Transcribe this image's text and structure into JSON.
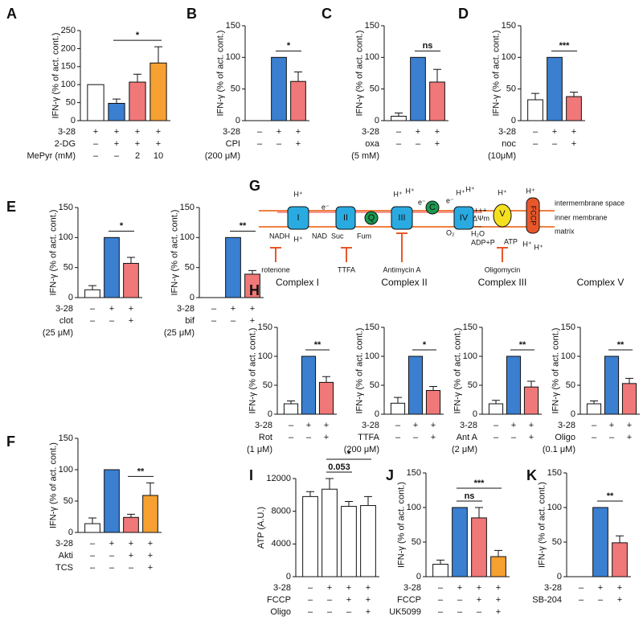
{
  "chart_data": [
    {
      "type": "bar",
      "panel": "A",
      "ylabel": "IFN-γ (% of act. cont.)",
      "values": [
        100,
        48,
        107,
        160
      ],
      "errors": [
        null,
        12,
        22,
        45
      ],
      "colors": [
        "#ffffff",
        "#3a7fd0",
        "#f07878",
        "#f5a030"
      ],
      "ylim": [
        0,
        250
      ],
      "yticks": [
        0,
        50,
        100,
        150,
        200,
        250
      ],
      "conditions": [
        {
          "label": "3-28",
          "marks": [
            "+",
            "+",
            "+",
            "+"
          ]
        },
        {
          "label": "2-DG",
          "marks": [
            "–",
            "+",
            "+",
            "+"
          ]
        },
        {
          "label": "MePyr (mM)",
          "marks": [
            "–",
            "–",
            "2",
            "10"
          ]
        }
      ],
      "significance": [
        {
          "label": "*",
          "bars": [
            1,
            3
          ]
        }
      ]
    },
    {
      "type": "bar",
      "panel": "B",
      "ylabel": "IFN-γ (% of act. cont.)",
      "values": [
        0,
        100,
        62
      ],
      "errors": [
        null,
        null,
        15
      ],
      "colors": [
        "#ffffff",
        "#3a7fd0",
        "#f07878"
      ],
      "ylim": [
        0,
        150
      ],
      "yticks": [
        0,
        50,
        100,
        150
      ],
      "conditions": [
        {
          "label": "3-28",
          "marks": [
            "–",
            "+",
            "+"
          ]
        },
        {
          "label": "CPI",
          "marks": [
            "–",
            "–",
            "+"
          ]
        }
      ],
      "note": "(200 μM)",
      "significance": [
        {
          "label": "*",
          "bars": [
            1,
            2
          ]
        }
      ]
    },
    {
      "type": "bar",
      "panel": "C",
      "ylabel": "IFN-γ (% of act. cont.)",
      "values": [
        7,
        100,
        61
      ],
      "errors": [
        5,
        null,
        20
      ],
      "colors": [
        "#ffffff",
        "#3a7fd0",
        "#f07878"
      ],
      "ylim": [
        0,
        150
      ],
      "yticks": [
        0,
        50,
        100,
        150
      ],
      "conditions": [
        {
          "label": "3-28",
          "marks": [
            "–",
            "+",
            "+"
          ]
        },
        {
          "label": "oxa",
          "marks": [
            "–",
            "–",
            "+"
          ]
        }
      ],
      "note": "(5 mM)",
      "significance": [
        {
          "label": "ns",
          "bars": [
            1,
            2
          ]
        }
      ]
    },
    {
      "type": "bar",
      "panel": "D",
      "ylabel": "IFN-γ (% of act. cont.)",
      "values": [
        33,
        100,
        38
      ],
      "errors": [
        10,
        null,
        7
      ],
      "colors": [
        "#ffffff",
        "#3a7fd0",
        "#f07878"
      ],
      "ylim": [
        0,
        150
      ],
      "yticks": [
        0,
        50,
        100,
        150
      ],
      "conditions": [
        {
          "label": "3-28",
          "marks": [
            "–",
            "+",
            "+"
          ]
        },
        {
          "label": "noc",
          "marks": [
            "–",
            "–",
            "+"
          ]
        }
      ],
      "note": "(10μM)",
      "significance": [
        {
          "label": "***",
          "bars": [
            1,
            2
          ]
        }
      ]
    },
    {
      "type": "bar",
      "panel": "E",
      "ylabel": "IFN-γ (% of act. cont.)",
      "values": [
        13,
        100,
        57
      ],
      "errors": [
        7,
        null,
        10
      ],
      "colors": [
        "#ffffff",
        "#3a7fd0",
        "#f07878"
      ],
      "ylim": [
        0,
        150
      ],
      "yticks": [
        0,
        50,
        100,
        150
      ],
      "conditions": [
        {
          "label": "3-28",
          "marks": [
            "–",
            "+",
            "+"
          ]
        },
        {
          "label": "clot",
          "marks": [
            "–",
            "–",
            "+"
          ]
        }
      ],
      "note": "(25 μM)",
      "significance": [
        {
          "label": "*",
          "bars": [
            1,
            2
          ]
        }
      ]
    },
    {
      "type": "bar",
      "ylabel": "IFN-γ (% of act. cont.)",
      "values": [
        0,
        100,
        39
      ],
      "errors": [
        null,
        null,
        6
      ],
      "colors": [
        "#ffffff",
        "#3a7fd0",
        "#f07878"
      ],
      "ylim": [
        0,
        150
      ],
      "yticks": [
        0,
        50,
        100,
        150
      ],
      "conditions": [
        {
          "label": "3-28",
          "marks": [
            "–",
            "+",
            "+"
          ]
        },
        {
          "label": "bif",
          "marks": [
            "–",
            "–",
            "+"
          ]
        }
      ],
      "note": "(25 μM)",
      "significance": [
        {
          "label": "**",
          "bars": [
            1,
            2
          ]
        }
      ]
    },
    {
      "type": "bar",
      "panel": "F",
      "ylabel": "IFN-γ (% of act. cont.)",
      "values": [
        14,
        100,
        24,
        59
      ],
      "errors": [
        9,
        null,
        5,
        20
      ],
      "colors": [
        "#ffffff",
        "#3a7fd0",
        "#f07878",
        "#f5a030"
      ],
      "ylim": [
        0,
        150
      ],
      "yticks": [
        0,
        50,
        100,
        150
      ],
      "conditions": [
        {
          "label": "3-28",
          "marks": [
            "–",
            "+",
            "+",
            "+"
          ]
        },
        {
          "label": "Akti",
          "marks": [
            "–",
            "–",
            "+",
            "+"
          ]
        },
        {
          "label": "TCS",
          "marks": [
            "–",
            "–",
            "–",
            "+"
          ]
        }
      ],
      "significance": [
        {
          "label": "**",
          "bars": [
            2,
            3
          ]
        }
      ]
    },
    {
      "type": "bar",
      "panel": "H",
      "title": "Complex I",
      "ylabel": "IFN-γ (% of act. cont.)",
      "values": [
        18,
        100,
        55
      ],
      "errors": [
        5,
        null,
        10
      ],
      "colors": [
        "#ffffff",
        "#3a7fd0",
        "#f07878"
      ],
      "ylim": [
        0,
        150
      ],
      "yticks": [
        0,
        50,
        100,
        150
      ],
      "conditions": [
        {
          "label": "3-28",
          "marks": [
            "–",
            "+",
            "+"
          ]
        },
        {
          "label": "Rot",
          "marks": [
            "–",
            "–",
            "+"
          ]
        }
      ],
      "note": "(1 μM)",
      "significance": [
        {
          "label": "**",
          "bars": [
            1,
            2
          ]
        }
      ]
    },
    {
      "type": "bar",
      "title": "Complex II",
      "ylabel": "IFN-γ (% of act. cont.)",
      "values": [
        19,
        100,
        41
      ],
      "errors": [
        10,
        null,
        7
      ],
      "colors": [
        "#ffffff",
        "#3a7fd0",
        "#f07878"
      ],
      "ylim": [
        0,
        150
      ],
      "yticks": [
        0,
        50,
        100,
        150
      ],
      "conditions": [
        {
          "label": "3-28",
          "marks": [
            "–",
            "+",
            "+"
          ]
        },
        {
          "label": "TTFA",
          "marks": [
            "–",
            "–",
            "+"
          ]
        }
      ],
      "note": "(200 μM)",
      "significance": [
        {
          "label": "*",
          "bars": [
            1,
            2
          ]
        }
      ]
    },
    {
      "type": "bar",
      "title": "Complex III",
      "ylabel": "IFN-γ (% of act. cont.)",
      "values": [
        18,
        100,
        47
      ],
      "errors": [
        6,
        null,
        10
      ],
      "colors": [
        "#ffffff",
        "#3a7fd0",
        "#f07878"
      ],
      "ylim": [
        0,
        150
      ],
      "yticks": [
        0,
        50,
        100,
        150
      ],
      "conditions": [
        {
          "label": "3-28",
          "marks": [
            "–",
            "+",
            "+"
          ]
        },
        {
          "label": "Ant A",
          "marks": [
            "–",
            "–",
            "+"
          ]
        }
      ],
      "note": "(2 μM)",
      "significance": [
        {
          "label": "**",
          "bars": [
            1,
            2
          ]
        }
      ]
    },
    {
      "type": "bar",
      "title": "Complex V",
      "ylabel": "IFN-γ (% of act. cont.)",
      "values": [
        18,
        100,
        53
      ],
      "errors": [
        5,
        null,
        9
      ],
      "colors": [
        "#ffffff",
        "#3a7fd0",
        "#f07878"
      ],
      "ylim": [
        0,
        150
      ],
      "yticks": [
        0,
        50,
        100,
        150
      ],
      "conditions": [
        {
          "label": "3-28",
          "marks": [
            "–",
            "+",
            "+"
          ]
        },
        {
          "label": "Oligo",
          "marks": [
            "–",
            "–",
            "+"
          ]
        }
      ],
      "note": "(0.1 μM)",
      "significance": [
        {
          "label": "**",
          "bars": [
            1,
            2
          ]
        }
      ]
    },
    {
      "type": "bar",
      "panel": "I",
      "ylabel": "ATP (A.U.)",
      "values": [
        9800,
        10700,
        8600,
        8700
      ],
      "errors": [
        600,
        1300,
        600,
        1100
      ],
      "colors": [
        "#ffffff",
        "#ffffff",
        "#ffffff",
        "#ffffff"
      ],
      "ylim": [
        0,
        12000
      ],
      "yticks": [
        0,
        4000,
        8000,
        12000
      ],
      "conditions": [
        {
          "label": "3-28",
          "marks": [
            "–",
            "+",
            "+",
            "+"
          ]
        },
        {
          "label": "FCCP",
          "marks": [
            "–",
            "–",
            "+",
            "+"
          ]
        },
        {
          "label": "Oligo",
          "marks": [
            "–",
            "–",
            "–",
            "+"
          ]
        }
      ],
      "significance": [
        {
          "label": "0.053",
          "bars": [
            1,
            2
          ]
        },
        {
          "label": "*",
          "bars": [
            1,
            3
          ]
        }
      ]
    },
    {
      "type": "bar",
      "panel": "J",
      "ylabel": "IFN-γ (% of act. cont.)",
      "values": [
        18,
        100,
        85,
        29
      ],
      "errors": [
        6,
        null,
        15,
        9
      ],
      "colors": [
        "#ffffff",
        "#3a7fd0",
        "#f07878",
        "#f5a030"
      ],
      "ylim": [
        0,
        150
      ],
      "yticks": [
        0,
        50,
        100,
        150
      ],
      "conditions": [
        {
          "label": "3-28",
          "marks": [
            "–",
            "+",
            "+",
            "+"
          ]
        },
        {
          "label": "FCCP",
          "marks": [
            "–",
            "–",
            "+",
            "+"
          ]
        },
        {
          "label": "UK5099",
          "marks": [
            "–",
            "–",
            "–",
            "+"
          ]
        }
      ],
      "significance": [
        {
          "label": "ns",
          "bars": [
            1,
            2
          ]
        },
        {
          "label": "***",
          "bars": [
            1,
            3
          ]
        }
      ]
    },
    {
      "type": "bar",
      "panel": "K",
      "ylabel": "IFN-γ (% of act. cont.)",
      "values": [
        0,
        100,
        49
      ],
      "errors": [
        null,
        null,
        10
      ],
      "colors": [
        "#ffffff",
        "#3a7fd0",
        "#f07878"
      ],
      "ylim": [
        0,
        150
      ],
      "yticks": [
        0,
        50,
        100,
        150
      ],
      "conditions": [
        {
          "label": "3-28",
          "marks": [
            "–",
            "+",
            "+"
          ]
        },
        {
          "label": "SB-204",
          "marks": [
            "–",
            "–",
            "+"
          ]
        }
      ],
      "significance": [
        {
          "label": "**",
          "bars": [
            1,
            2
          ]
        }
      ]
    }
  ],
  "diagram": {
    "panel": "G",
    "proton": "H⁺",
    "electron": "e⁻",
    "complexes": [
      "I",
      "II",
      "Q",
      "III",
      "C",
      "IV",
      "V",
      "FCCP"
    ],
    "substrates": [
      "NADH",
      "NAD",
      "Suc",
      "Fum",
      "O₂",
      "H₂O",
      "ADP+P",
      "ATP"
    ],
    "potential": [
      "+++",
      "ΔΨm",
      "---"
    ],
    "regions": [
      "intermembrane space",
      "inner membrane",
      "matrix"
    ],
    "inhibitors": [
      "rotenone",
      "TTFA",
      "Antimycin A",
      "Oligomycin"
    ]
  }
}
